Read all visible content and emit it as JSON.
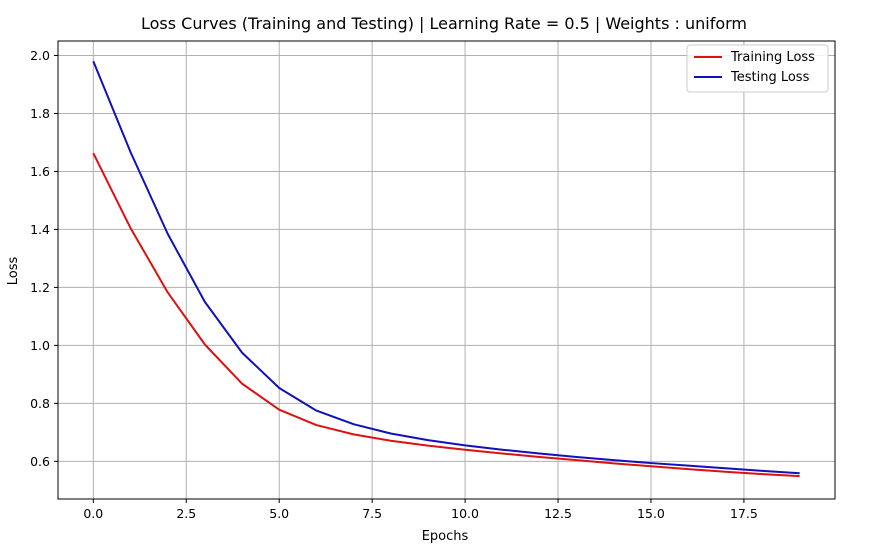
{
  "chart_data": {
    "type": "line",
    "title": "Loss Curves (Training and Testing) | Learning Rate = 0.5 | Weights : uniform",
    "xlabel": "Epochs",
    "ylabel": "Loss",
    "xlim": [
      -0.95,
      19.95
    ],
    "ylim": [
      0.47,
      2.05
    ],
    "xticks": [
      0.0,
      2.5,
      5.0,
      7.5,
      10.0,
      12.5,
      15.0,
      17.5
    ],
    "xtick_labels": [
      "0.0",
      "2.5",
      "5.0",
      "7.5",
      "10.0",
      "12.5",
      "15.0",
      "17.5"
    ],
    "yticks": [
      0.6,
      0.8,
      1.0,
      1.2,
      1.4,
      1.6,
      1.8,
      2.0
    ],
    "ytick_labels": [
      "0.6",
      "0.8",
      "1.0",
      "1.2",
      "1.4",
      "1.6",
      "1.8",
      "2.0"
    ],
    "grid": true,
    "legend_position": "top-right",
    "x": [
      0,
      1,
      2,
      3,
      4,
      5,
      6,
      7,
      8,
      9,
      10,
      11,
      12,
      13,
      14,
      15,
      16,
      17,
      18,
      19
    ],
    "series": [
      {
        "name": "Training Loss",
        "color": "#dd1111",
        "values": [
          1.663,
          1.405,
          1.183,
          1.003,
          0.868,
          0.778,
          0.725,
          0.693,
          0.671,
          0.654,
          0.64,
          0.627,
          0.615,
          0.604,
          0.593,
          0.583,
          0.573,
          0.564,
          0.556,
          0.549
        ]
      },
      {
        "name": "Testing Loss",
        "color": "#1111bb",
        "values": [
          1.98,
          1.667,
          1.385,
          1.15,
          0.975,
          0.853,
          0.775,
          0.728,
          0.696,
          0.673,
          0.655,
          0.64,
          0.627,
          0.615,
          0.604,
          0.594,
          0.585,
          0.576,
          0.567,
          0.559
        ]
      }
    ]
  }
}
